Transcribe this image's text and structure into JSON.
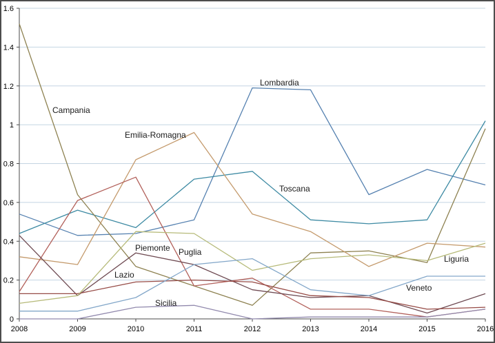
{
  "chart_data": {
    "type": "line",
    "x": [
      2008,
      2009,
      2010,
      2011,
      2012,
      2013,
      2014,
      2015,
      2016
    ],
    "x_tick_labels": [
      "2008",
      "2009",
      "2010",
      "2011",
      "2012",
      "2013",
      "2014",
      "2015",
      "2016"
    ],
    "y_tick_labels": [
      "0",
      "0.2",
      "0.4",
      "0.6",
      "0.8",
      "1",
      "1.2",
      "1.4",
      "1.6"
    ],
    "y_tick_values": [
      0,
      0.2,
      0.4,
      0.6,
      0.8,
      1.0,
      1.2,
      1.4,
      1.6
    ],
    "ylim": [
      0,
      1.6
    ],
    "xlim": [
      2008,
      2016
    ],
    "grid": "horizontal",
    "gridline_color": "#c3d4e2",
    "axis_color": "#4a4a4a",
    "legend_position": "inline-labels",
    "title": "",
    "xlabel": "",
    "ylabel": "",
    "series": [
      {
        "name": "Lombardia",
        "color": "#5581b0",
        "values": [
          0.54,
          0.43,
          0.44,
          0.51,
          1.19,
          1.18,
          0.64,
          0.77,
          0.69
        ],
        "label": {
          "text": "Lombardia",
          "px": 377,
          "py": 124
        }
      },
      {
        "name": "Toscana",
        "color": "#3d8aa3",
        "values": [
          0.44,
          0.56,
          0.47,
          0.72,
          0.76,
          0.51,
          0.49,
          0.51,
          1.02
        ],
        "label": {
          "text": "Toscana",
          "px": 405,
          "py": 278
        }
      },
      {
        "name": "Campania",
        "color": "#8d8150",
        "values": [
          1.52,
          0.64,
          0.27,
          0.17,
          0.07,
          0.34,
          0.35,
          0.29,
          0.98
        ],
        "label": {
          "text": "Campania",
          "px": 76,
          "py": 164
        }
      },
      {
        "name": "Emilia-Romagna",
        "color": "#c49a6c",
        "values": [
          0.32,
          0.28,
          0.82,
          0.96,
          0.54,
          0.45,
          0.27,
          0.39,
          0.37
        ],
        "label": {
          "text": "Emilia-Romagna",
          "px": 181,
          "py": 200
        }
      },
      {
        "name": "Puglia",
        "color": "#b2605a",
        "values": [
          0.14,
          0.61,
          0.73,
          0.17,
          0.21,
          0.05,
          0.05,
          0.01,
          0.05
        ],
        "label": {
          "text": "Puglia",
          "px": 259,
          "py": 370
        }
      },
      {
        "name": "Piemonte",
        "color": "#6e4a52",
        "values": [
          0.43,
          0.12,
          0.34,
          0.28,
          0.15,
          0.11,
          0.12,
          0.03,
          0.13
        ],
        "label": {
          "text": "Piemonte",
          "px": 196,
          "py": 364
        }
      },
      {
        "name": "Lazio",
        "color": "#964a45",
        "values": [
          0.13,
          0.13,
          0.19,
          0.2,
          0.19,
          0.12,
          0.11,
          0.05,
          0.06
        ],
        "label": {
          "text": "Lazio",
          "px": 166,
          "py": 403
        }
      },
      {
        "name": "Liguria",
        "color": "#b6ba79",
        "values": [
          0.08,
          0.12,
          0.45,
          0.44,
          0.25,
          0.31,
          0.33,
          0.3,
          0.39
        ],
        "label": {
          "text": "Liguria",
          "px": 644,
          "py": 380
        }
      },
      {
        "name": "Veneto",
        "color": "#83a7c9",
        "values": [
          0.04,
          0.04,
          0.11,
          0.28,
          0.31,
          0.15,
          0.12,
          0.22,
          0.22
        ],
        "label": {
          "text": "Veneto",
          "px": 589,
          "py": 422
        }
      },
      {
        "name": "Sicilia",
        "color": "#9189ad",
        "values": [
          0.0,
          0.0,
          0.06,
          0.07,
          0.0,
          0.01,
          0.01,
          0.01,
          0.05
        ],
        "label": {
          "text": "Sicilia",
          "px": 225,
          "py": 444
        }
      }
    ]
  }
}
